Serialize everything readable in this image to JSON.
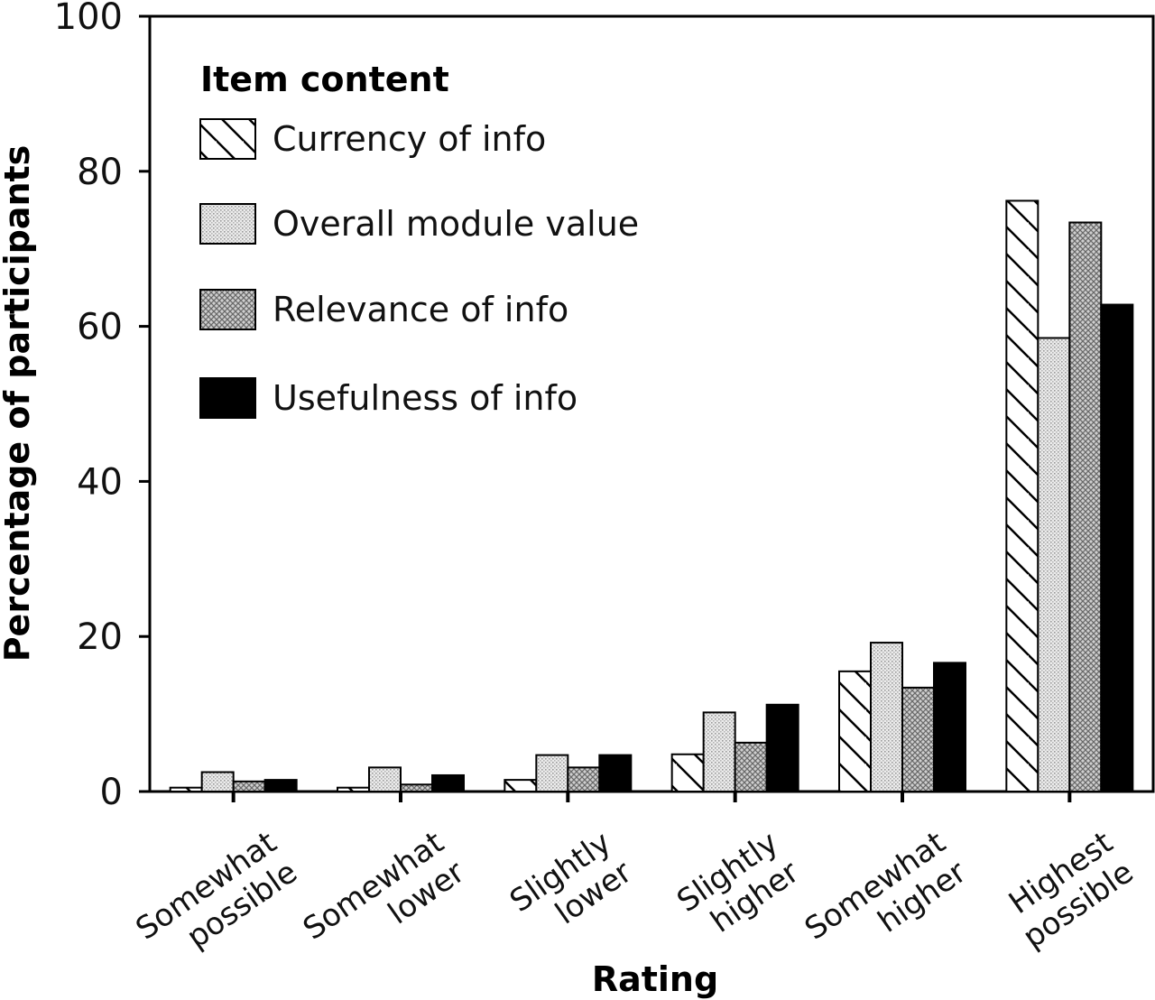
{
  "chart_data": {
    "type": "bar",
    "xlabel": "Rating",
    "ylabel": "Percentage of participants",
    "ylim": [
      0,
      100
    ],
    "yticks": [
      0,
      20,
      40,
      60,
      80,
      100
    ],
    "grid": false,
    "legend": {
      "title": "Item content",
      "placement": "top-left"
    },
    "categories": [
      [
        "Somewhat",
        "possible"
      ],
      [
        "Somewhat",
        "lower"
      ],
      [
        "Slightly",
        "lower"
      ],
      [
        "Slightly",
        "higher"
      ],
      [
        "Somewhat",
        "higher"
      ],
      [
        "Highest",
        "possible"
      ]
    ],
    "series": [
      {
        "name": "Currency of info",
        "pattern": "diagonal-hatch",
        "values": [
          0.5,
          0.5,
          1.5,
          4.8,
          15.5,
          76.2
        ]
      },
      {
        "name": "Overall module value",
        "pattern": "light-dots",
        "values": [
          2.5,
          3.1,
          4.7,
          10.2,
          19.2,
          58.5
        ]
      },
      {
        "name": "Relevance of info",
        "pattern": "dark-crosshatch",
        "values": [
          1.3,
          0.9,
          3.1,
          6.3,
          13.4,
          73.4
        ]
      },
      {
        "name": "Usefulness of info",
        "pattern": "solid-black",
        "values": [
          1.5,
          2.1,
          4.7,
          11.2,
          16.6,
          62.8
        ]
      }
    ]
  }
}
